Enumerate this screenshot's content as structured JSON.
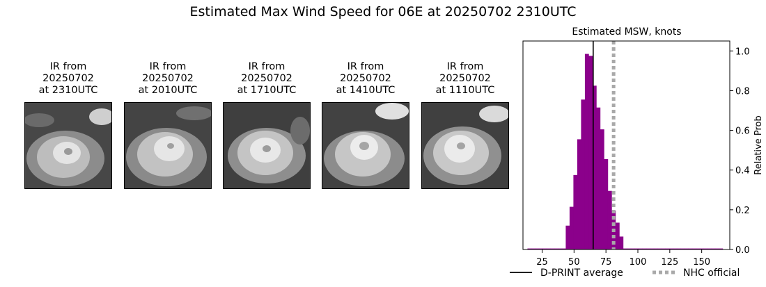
{
  "figure": {
    "title": "Estimated Max Wind Speed for 06E at 20250702 2310UTC"
  },
  "ir_panels": [
    {
      "caption": "IR from\n20250702\nat 2310UTC",
      "icon": "satellite-ir-image"
    },
    {
      "caption": "IR from\n20250702\nat 2010UTC",
      "icon": "satellite-ir-image"
    },
    {
      "caption": "IR from\n20250702\nat 1710UTC",
      "icon": "satellite-ir-image"
    },
    {
      "caption": "IR from\n20250702\nat 1410UTC",
      "icon": "satellite-ir-image"
    },
    {
      "caption": "IR from\n20250702\nat 1110UTC",
      "icon": "satellite-ir-image"
    }
  ],
  "chart_data": {
    "type": "bar",
    "title": "Estimated MSW, knots",
    "xlabel": "",
    "ylabel": "Relative Prob",
    "xlim": [
      10,
      172
    ],
    "ylim": [
      0,
      1.05
    ],
    "xticks": [
      25,
      50,
      75,
      100,
      125,
      150
    ],
    "yticks": [
      0.0,
      0.2,
      0.4,
      0.6,
      0.8,
      1.0
    ],
    "ytick_labels": [
      "0.0",
      "0.2",
      "0.4",
      "0.6",
      "0.8",
      "1.0"
    ],
    "y_axis_side": "right",
    "bar_color": "#8b008b",
    "bin_width": 3,
    "bins": [
      {
        "x": 15,
        "value": 0.005
      },
      {
        "x": 18,
        "value": 0.005
      },
      {
        "x": 21,
        "value": 0.005
      },
      {
        "x": 24,
        "value": 0.005
      },
      {
        "x": 27,
        "value": 0.005
      },
      {
        "x": 30,
        "value": 0.005
      },
      {
        "x": 33,
        "value": 0.005
      },
      {
        "x": 36,
        "value": 0.005
      },
      {
        "x": 39,
        "value": 0.005
      },
      {
        "x": 42,
        "value": 0.005
      },
      {
        "x": 45,
        "value": 0.12
      },
      {
        "x": 48,
        "value": 0.215
      },
      {
        "x": 51,
        "value": 0.375
      },
      {
        "x": 54,
        "value": 0.555
      },
      {
        "x": 57,
        "value": 0.755
      },
      {
        "x": 60,
        "value": 0.985
      },
      {
        "x": 63,
        "value": 0.975
      },
      {
        "x": 66,
        "value": 0.825
      },
      {
        "x": 69,
        "value": 0.715
      },
      {
        "x": 72,
        "value": 0.605
      },
      {
        "x": 75,
        "value": 0.455
      },
      {
        "x": 78,
        "value": 0.295
      },
      {
        "x": 81,
        "value": 0.195
      },
      {
        "x": 84,
        "value": 0.135
      },
      {
        "x": 87,
        "value": 0.065
      },
      {
        "x": 90,
        "value": 0.005
      },
      {
        "x": 93,
        "value": 0.005
      },
      {
        "x": 96,
        "value": 0.005
      },
      {
        "x": 99,
        "value": 0.005
      },
      {
        "x": 102,
        "value": 0.005
      },
      {
        "x": 105,
        "value": 0.005
      },
      {
        "x": 108,
        "value": 0.005
      },
      {
        "x": 111,
        "value": 0.005
      },
      {
        "x": 114,
        "value": 0.005
      },
      {
        "x": 117,
        "value": 0.005
      },
      {
        "x": 120,
        "value": 0.005
      },
      {
        "x": 123,
        "value": 0.005
      },
      {
        "x": 126,
        "value": 0.005
      },
      {
        "x": 129,
        "value": 0.005
      },
      {
        "x": 132,
        "value": 0.005
      },
      {
        "x": 135,
        "value": 0.005
      },
      {
        "x": 138,
        "value": 0.005
      },
      {
        "x": 141,
        "value": 0.005
      },
      {
        "x": 144,
        "value": 0.005
      },
      {
        "x": 147,
        "value": 0.005
      },
      {
        "x": 150,
        "value": 0.005
      },
      {
        "x": 153,
        "value": 0.005
      },
      {
        "x": 156,
        "value": 0.005
      },
      {
        "x": 159,
        "value": 0.005
      },
      {
        "x": 162,
        "value": 0.005
      },
      {
        "x": 165,
        "value": 0.005
      }
    ],
    "reference_lines": [
      {
        "name": "D-PRINT average",
        "x": 65,
        "color": "#000000",
        "style": "solid"
      },
      {
        "name": "NHC official",
        "x": 81,
        "color": "#a9a9a9",
        "style": "dotted"
      }
    ],
    "legend_position": "bottom"
  }
}
